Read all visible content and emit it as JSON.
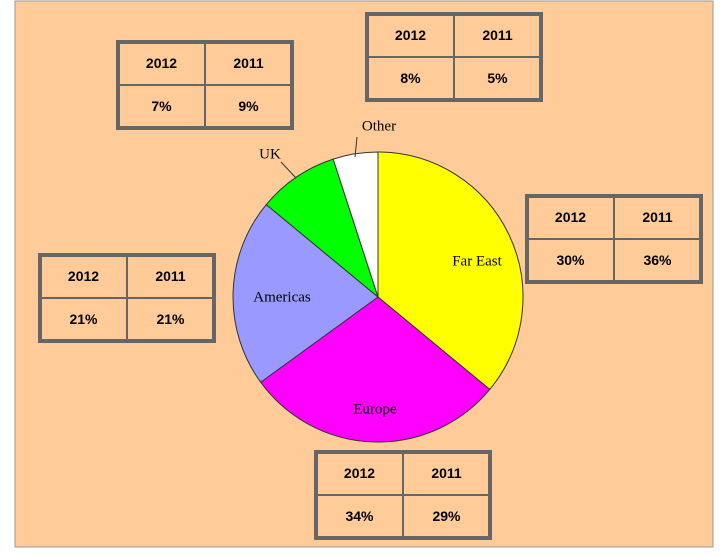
{
  "chart_data": {
    "type": "pie",
    "categories": [
      "Far East",
      "Europe",
      "Americas",
      "UK",
      "Other"
    ],
    "colors": [
      "#ffff00",
      "#ff00ff",
      "#9999ff",
      "#00ff00",
      "#ffffff"
    ],
    "series": [
      {
        "name": "2012",
        "values": [
          30,
          34,
          21,
          7,
          8
        ],
        "value_labels": [
          "30%",
          "34%",
          "21%",
          "7%",
          "8%"
        ]
      },
      {
        "name": "2011",
        "values": [
          36,
          29,
          21,
          9,
          5
        ],
        "value_labels": [
          "36%",
          "29%",
          "21%",
          "9%",
          "5%"
        ],
        "pie": true
      }
    ]
  }
}
